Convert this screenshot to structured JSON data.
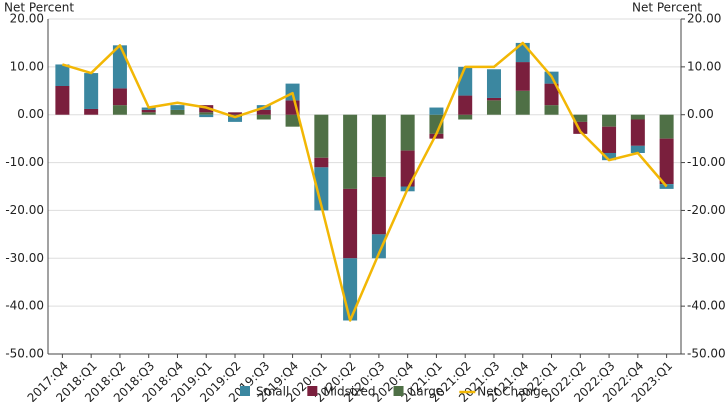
{
  "chart_data": {
    "type": "stacked-bar-line",
    "y_label": "Net Percent",
    "y2_label": "Net Percent",
    "categories": [
      "2017:Q4",
      "2018:Q1",
      "2018:Q2",
      "2018:Q3",
      "2018:Q4",
      "2019:Q1",
      "2019:Q2",
      "2019:Q3",
      "2019:Q4",
      "2020:Q1",
      "2020:Q2",
      "2020:Q3",
      "2020:Q4",
      "2021:Q1",
      "2021:Q2",
      "2021:Q3",
      "2021:Q4",
      "2022:Q1",
      "2022:Q2",
      "2022:Q3",
      "2022:Q4",
      "2023:Q1"
    ],
    "series": [
      {
        "name": "Small",
        "color": "#3b87a0",
        "values": [
          4.5,
          7.5,
          9,
          0.5,
          1,
          -0.5,
          -1,
          1,
          3.5,
          -9,
          -13,
          -5,
          -1,
          1.5,
          6,
          6,
          4,
          2.5,
          0,
          -1.5,
          -1.5,
          -1
        ]
      },
      {
        "name": "Midsized",
        "color": "#7a1f3d",
        "values": [
          6,
          1.2,
          3.5,
          0.5,
          0,
          1.5,
          0.5,
          1,
          3,
          -2,
          -14.5,
          -12,
          -7.5,
          -1,
          4,
          0.5,
          6,
          4.5,
          -2.5,
          -5.5,
          -5.5,
          -9.5
        ]
      },
      {
        "name": "Large",
        "color": "#4f7046",
        "values": [
          0,
          0,
          2,
          0.5,
          1,
          0.5,
          -0.5,
          -1,
          -2.5,
          -9,
          -15.5,
          -13,
          -7.5,
          -4,
          -1,
          3,
          5,
          2,
          -1.5,
          -2.5,
          -1,
          -5
        ]
      },
      {
        "name": "Net Change",
        "color": "#f2b705",
        "line": true,
        "values": [
          10.5,
          8.7,
          14.5,
          1.5,
          2.5,
          1.5,
          -0.5,
          1.5,
          4.5,
          -19,
          -43,
          -29,
          -15.5,
          -4,
          10,
          10,
          15,
          8,
          -3.5,
          -9.5,
          -8,
          -15
        ]
      }
    ],
    "ylim": [
      -50,
      20
    ],
    "yticks": [
      {
        "value": -50,
        "label": "-50.00"
      },
      {
        "value": -40,
        "label": "-40.00"
      },
      {
        "value": -30,
        "label": "-30.00"
      },
      {
        "value": -20,
        "label": "-20.00"
      },
      {
        "value": -10,
        "label": "-10.00"
      },
      {
        "value": 0,
        "label": "0.00"
      },
      {
        "value": 10,
        "label": "10.00"
      },
      {
        "value": 20,
        "label": "20.00"
      }
    ],
    "y2lim": [
      -50,
      20
    ],
    "y2ticks": [
      {
        "value": -50,
        "label": "-50.00"
      },
      {
        "value": -40,
        "label": "-40.00"
      },
      {
        "value": -30,
        "label": "-30.00"
      },
      {
        "value": -20,
        "label": "-20.00"
      },
      {
        "value": -10,
        "label": "-10.00"
      },
      {
        "value": 0,
        "label": "0.00"
      },
      {
        "value": 10,
        "label": "10.00"
      },
      {
        "value": 20,
        "label": "20.00"
      }
    ],
    "grid": true
  }
}
